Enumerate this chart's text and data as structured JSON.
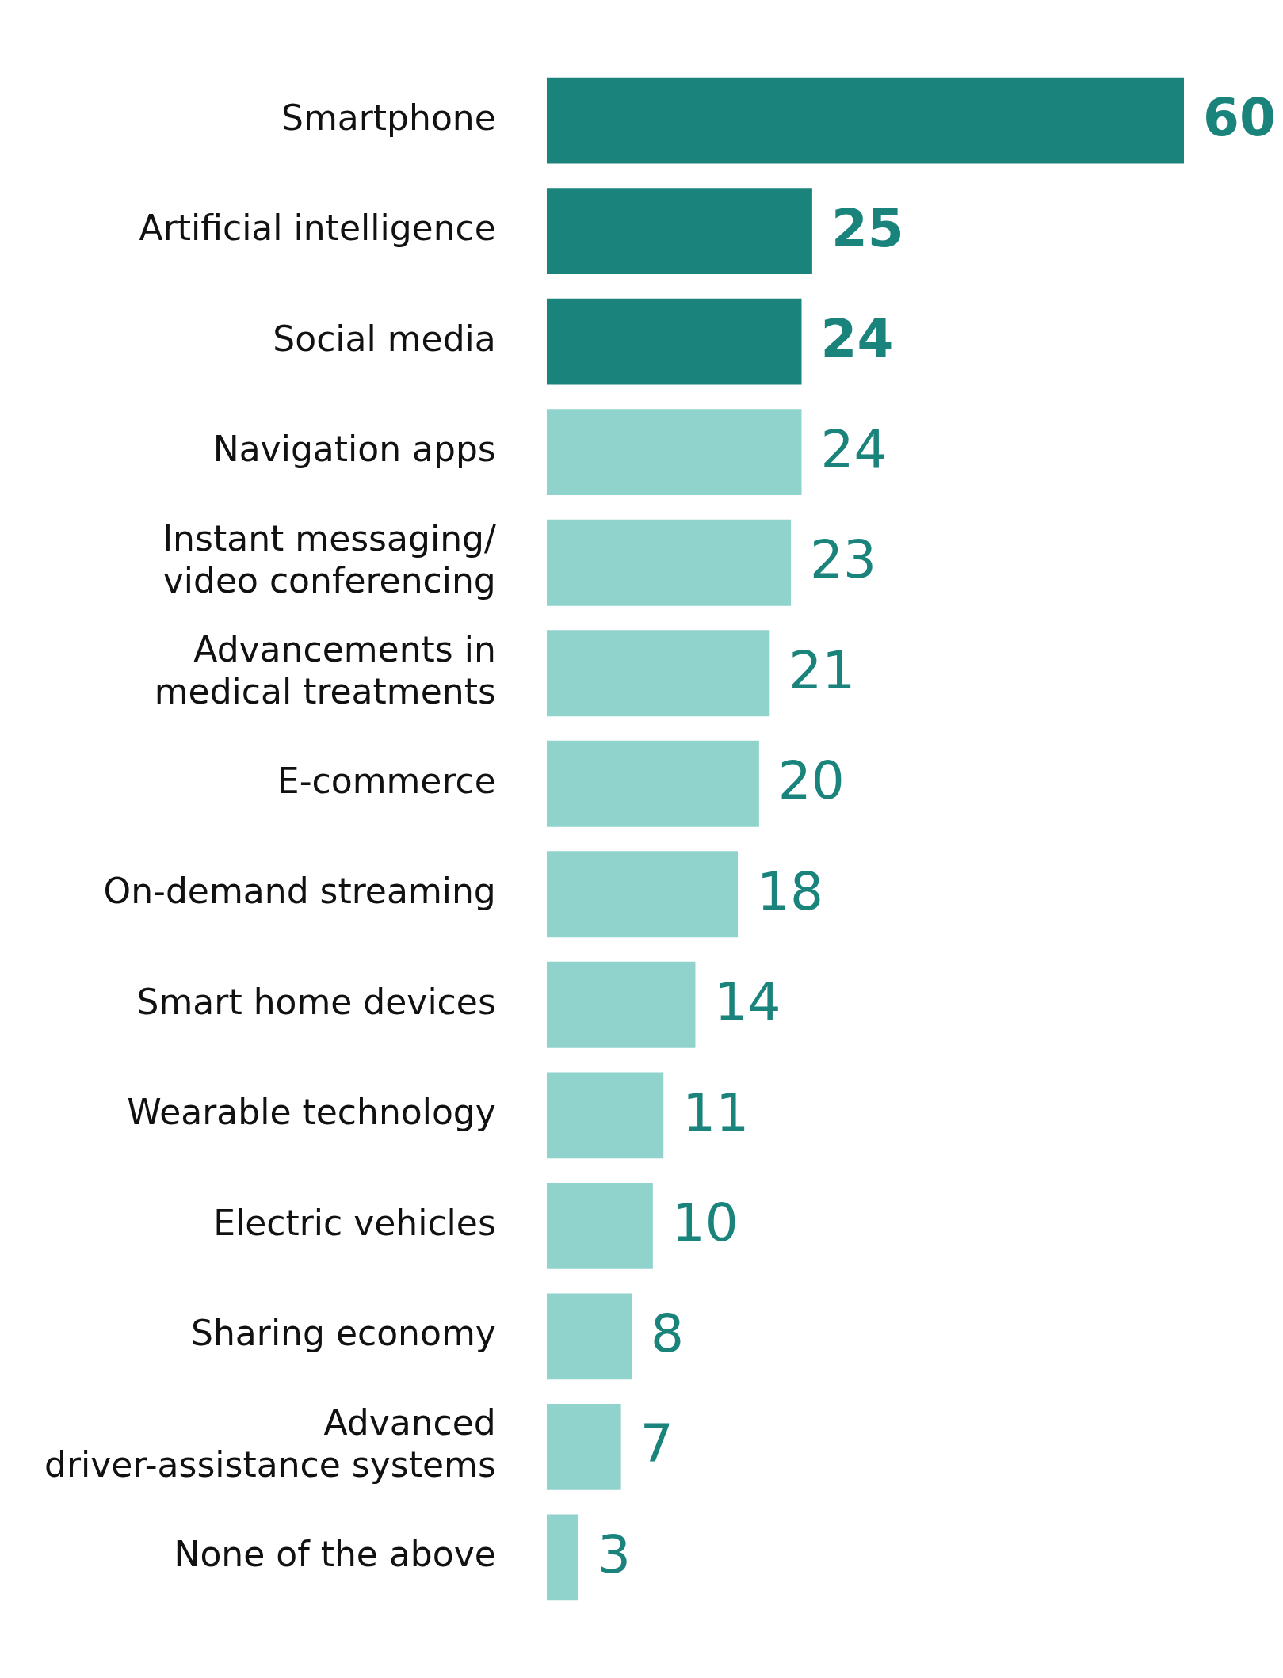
{
  "chart_data": {
    "type": "bar",
    "orientation": "horizontal",
    "data_labels": true,
    "legend": false,
    "categories": [
      "Smartphone",
      "Artificial intelligence",
      "Social media",
      "Navigation apps",
      "Instant messaging/ video conferencing",
      "Advancements in medical treatments",
      "E-commerce",
      "On-demand streaming",
      "Smart home devices",
      "Wearable technology",
      "Electric vehicles",
      "Sharing economy",
      "Advanced driver-assistance systems",
      "None of the above"
    ],
    "values": [
      60,
      25,
      24,
      24,
      23,
      21,
      20,
      18,
      14,
      11,
      10,
      8,
      7,
      3
    ],
    "colors": [
      "#1a847c",
      "#1a847c",
      "#1a847c",
      "#8fd3cc",
      "#8fd3cc",
      "#8fd3cc",
      "#8fd3cc",
      "#8fd3cc",
      "#8fd3cc",
      "#8fd3cc",
      "#8fd3cc",
      "#8fd3cc",
      "#8fd3cc",
      "#8fd3cc"
    ]
  }
}
